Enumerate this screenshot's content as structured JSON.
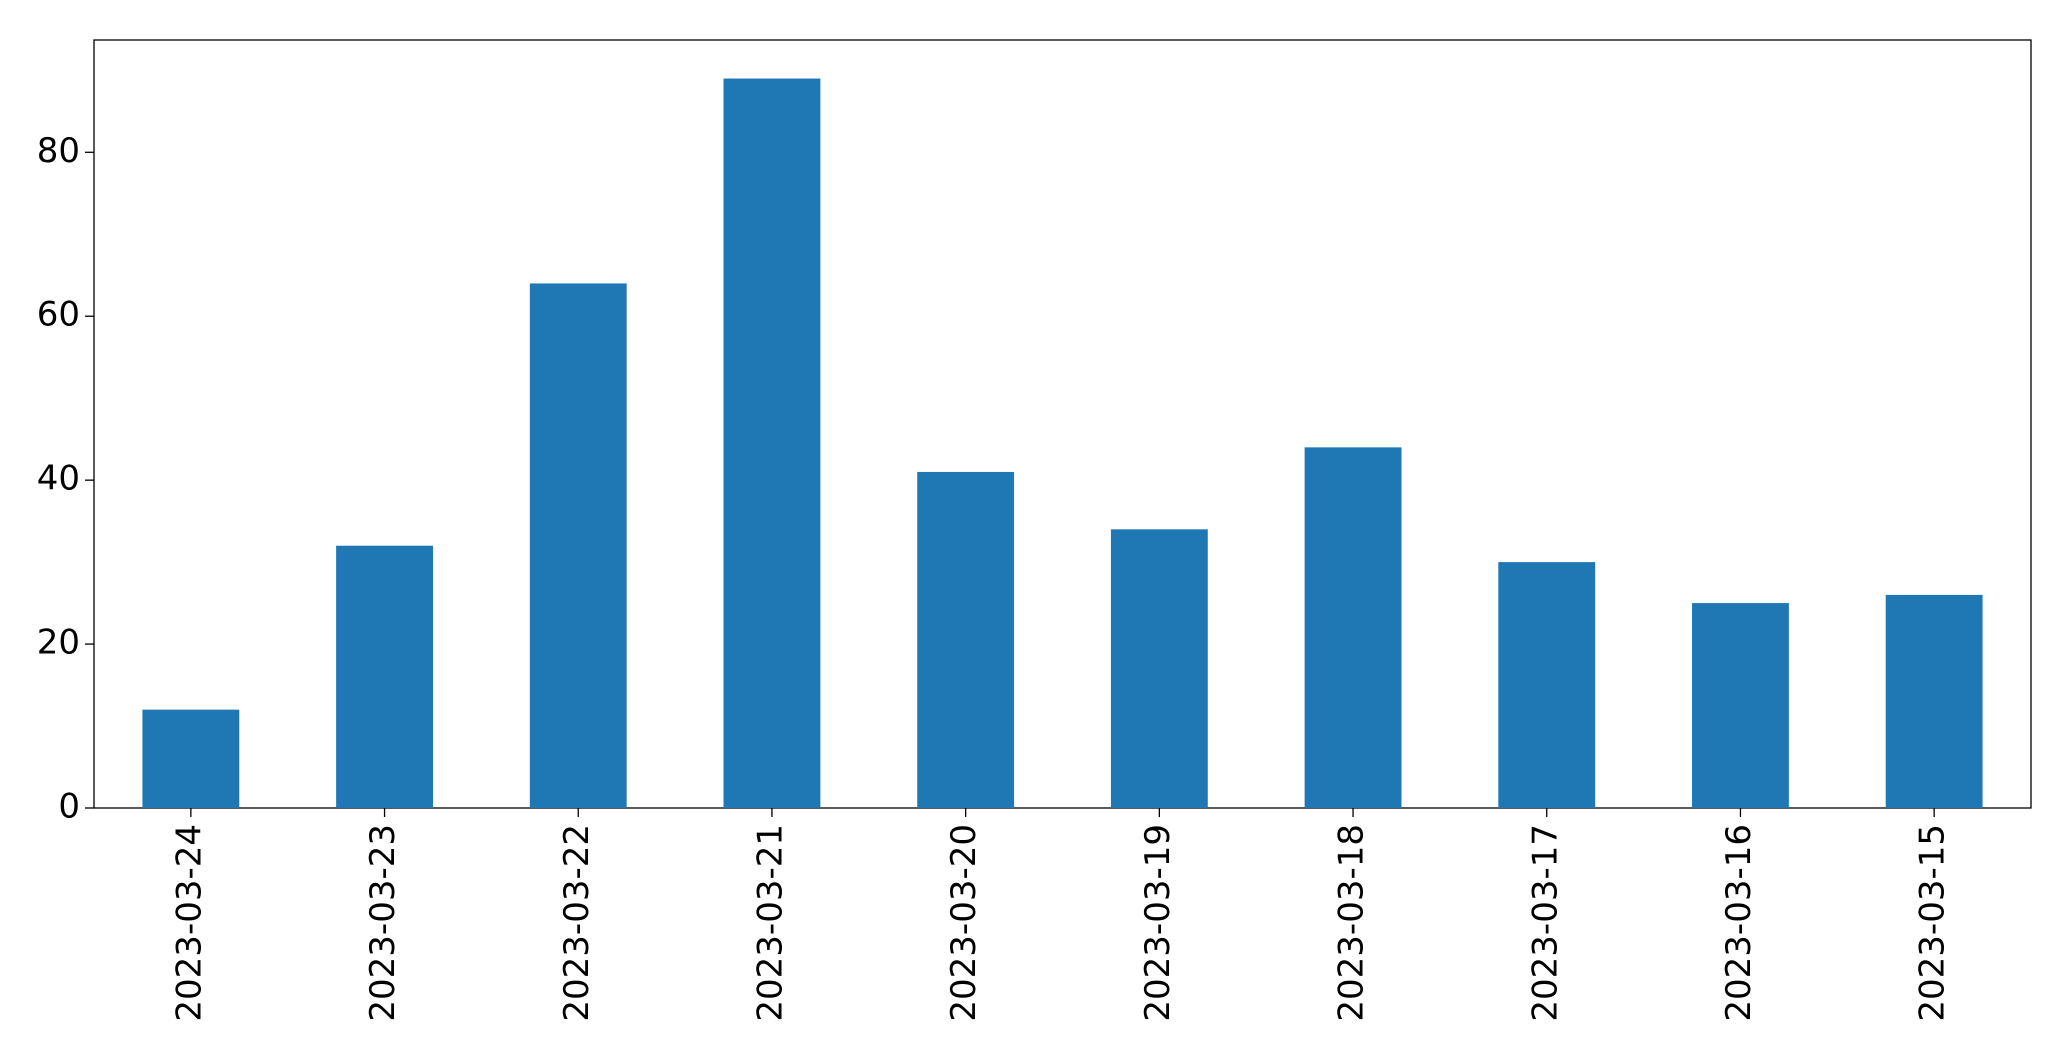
{
  "chart_data": {
    "type": "bar",
    "categories": [
      "2023-03-24",
      "2023-03-23",
      "2023-03-22",
      "2023-03-21",
      "2023-03-20",
      "2023-03-19",
      "2023-03-18",
      "2023-03-17",
      "2023-03-16",
      "2023-03-15"
    ],
    "values": [
      12,
      32,
      64,
      89,
      41,
      34,
      44,
      30,
      25,
      26
    ],
    "color": "#1f77b4",
    "ylim": [
      0,
      93.7
    ],
    "yticks": [
      0,
      20,
      40,
      60,
      80
    ],
    "grid": false
  }
}
